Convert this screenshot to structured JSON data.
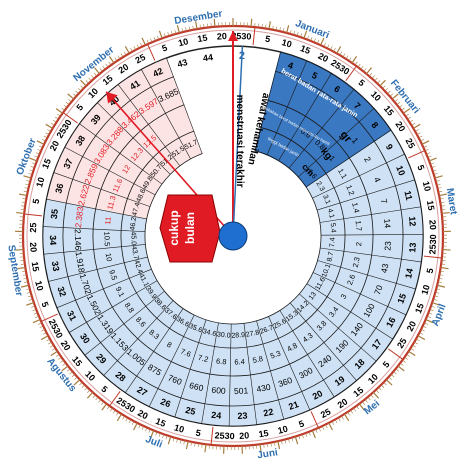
{
  "months": [
    {
      "name": "Januari",
      "days": [
        "5",
        "10",
        "15",
        "20",
        "2530"
      ]
    },
    {
      "name": "Februari",
      "days": [
        "5",
        "10",
        "15",
        "20",
        "25"
      ]
    },
    {
      "name": "Maret",
      "days": [
        "5",
        "10",
        "15",
        "20",
        "2530"
      ]
    },
    {
      "name": "April",
      "days": [
        "5",
        "10",
        "15",
        "20",
        "25"
      ]
    },
    {
      "name": "Mei",
      "days": [
        "5",
        "10",
        "15",
        "20",
        "25"
      ]
    },
    {
      "name": "Juni",
      "days": [
        "5",
        "10",
        "15",
        "20",
        "2530"
      ]
    },
    {
      "name": "Juli",
      "days": [
        "5",
        "10",
        "15",
        "20",
        "2530"
      ]
    },
    {
      "name": "Agustus",
      "days": [
        "5",
        "10",
        "15",
        "20",
        "2530"
      ]
    },
    {
      "name": "September",
      "days": [
        "5",
        "10",
        "15",
        "20",
        "25"
      ]
    },
    {
      "name": "Oktober",
      "days": [
        "5",
        "10",
        "15",
        "20",
        "2530"
      ]
    },
    {
      "name": "November",
      "days": [
        "5",
        "10",
        "15",
        "20",
        "25"
      ]
    },
    {
      "name": "Desember",
      "days": [
        "5",
        "10",
        "15",
        "20",
        "2530"
      ]
    }
  ],
  "labels": {
    "lmp": "menstruasi terakhir",
    "conception": "awal kehamilan",
    "term": "cukup bulan",
    "week_mark": "2",
    "center_header": "berat badan rata-rata janin",
    "mother_header": "tambahan berat badan rata-rata ibu hamil",
    "length_header": "tinggi badan janin",
    "unit_g": "gr",
    "unit_kg": "kg",
    "unit_cm": "cm"
  },
  "weeks": [
    {
      "w": "4",
      "kg": "",
      "cm": "",
      "g": ""
    },
    {
      "w": "5",
      "kg": "",
      "cm": "",
      "g": ""
    },
    {
      "w": "6",
      "kg": "0.6",
      "cm": "",
      "g": ""
    },
    {
      "w": "7",
      "kg": "0.8",
      "cm": "",
      "g": ""
    },
    {
      "w": "8",
      "kg": "1",
      "cm": "1.6",
      "g": "1"
    },
    {
      "w": "9",
      "kg": "1.1",
      "cm": "2.3",
      "g": "2"
    },
    {
      "w": "10",
      "kg": "1.2",
      "cm": "3.1",
      "g": "4"
    },
    {
      "w": "11",
      "kg": "1.4",
      "cm": "4.1",
      "g": "7"
    },
    {
      "w": "12",
      "kg": "1.7",
      "cm": "5.4",
      "g": "14"
    },
    {
      "w": "13",
      "kg": "2",
      "cm": "7.4",
      "g": "23"
    },
    {
      "w": "14",
      "kg": "2.3",
      "cm": "8.7",
      "g": "43"
    },
    {
      "w": "15",
      "kg": "2.6",
      "cm": "10.1",
      "g": "70"
    },
    {
      "w": "16",
      "kg": "3",
      "cm": "11.6",
      "g": "100"
    },
    {
      "w": "17",
      "kg": "3.4",
      "cm": "13",
      "g": "140"
    },
    {
      "w": "18",
      "kg": "3.8",
      "cm": "14.2",
      "g": "190"
    },
    {
      "w": "19",
      "kg": "4.3",
      "cm": "15.3",
      "g": "240"
    },
    {
      "w": "20",
      "kg": "4.8",
      "cm": "25.6",
      "g": "300"
    },
    {
      "w": "21",
      "kg": "5.3",
      "cm": "26.7",
      "g": "360"
    },
    {
      "w": "22",
      "kg": "5.8",
      "cm": "27.8",
      "g": "430"
    },
    {
      "w": "23",
      "kg": "6.4",
      "cm": "28.9",
      "g": "501"
    },
    {
      "w": "24",
      "kg": "6.8",
      "cm": "30.0",
      "g": "600"
    },
    {
      "w": "25",
      "kg": "7.2",
      "cm": "34.6",
      "g": "660"
    },
    {
      "w": "26",
      "kg": "7.6",
      "cm": "35.6",
      "g": "760"
    },
    {
      "w": "27",
      "kg": "8",
      "cm": "36.6",
      "g": "875"
    },
    {
      "w": "28",
      "kg": "8.3",
      "cm": "37.6",
      "g": "1.005"
    },
    {
      "w": "29",
      "kg": "8.6",
      "cm": "38.6",
      "g": "1.153"
    },
    {
      "w": "30",
      "kg": "8.8",
      "cm": "39.9",
      "g": "1.319"
    },
    {
      "w": "31",
      "kg": "9.1",
      "cm": "41.1",
      "g": "1.502"
    },
    {
      "w": "32",
      "kg": "9.5",
      "cm": "42.4",
      "g": "1.702"
    },
    {
      "w": "33",
      "kg": "10",
      "cm": "43.7",
      "g": "1.918"
    },
    {
      "w": "34",
      "kg": "10.5",
      "cm": "45.0",
      "g": "2.146"
    },
    {
      "w": "35",
      "kg": "11",
      "cm": "46.2",
      "g": "2.383"
    },
    {
      "w": "36",
      "kg": "11.3",
      "cm": "47.4",
      "g": "2.622"
    },
    {
      "w": "37",
      "kg": "11.6",
      "cm": "48.6",
      "g": "2.859"
    },
    {
      "w": "38",
      "kg": "12",
      "cm": "49.8",
      "g": "3.083"
    },
    {
      "w": "39",
      "kg": "12.3",
      "cm": "50.7",
      "g": "3.288"
    },
    {
      "w": "40",
      "kg": "12.5",
      "cm": "51.2",
      "g": "3.462"
    },
    {
      "w": "41",
      "kg": "",
      "cm": "51.5",
      "g": "3.597"
    },
    {
      "w": "42",
      "kg": "",
      "cm": "51.7",
      "g": "3.685"
    },
    {
      "w": "43",
      "kg": "",
      "cm": "",
      "g": ""
    },
    {
      "w": "44",
      "kg": "",
      "cm": "",
      "g": ""
    }
  ],
  "colors": {
    "month": "#2f6fb0",
    "rim": "#c0392b",
    "blue_panel": "#cfe2f5",
    "blue_dark": "#3a78c2",
    "pink_panel": "#fde4e4",
    "red": "#e01b24",
    "hub": "#1f6fd0",
    "tick": "#a67c3d"
  }
}
